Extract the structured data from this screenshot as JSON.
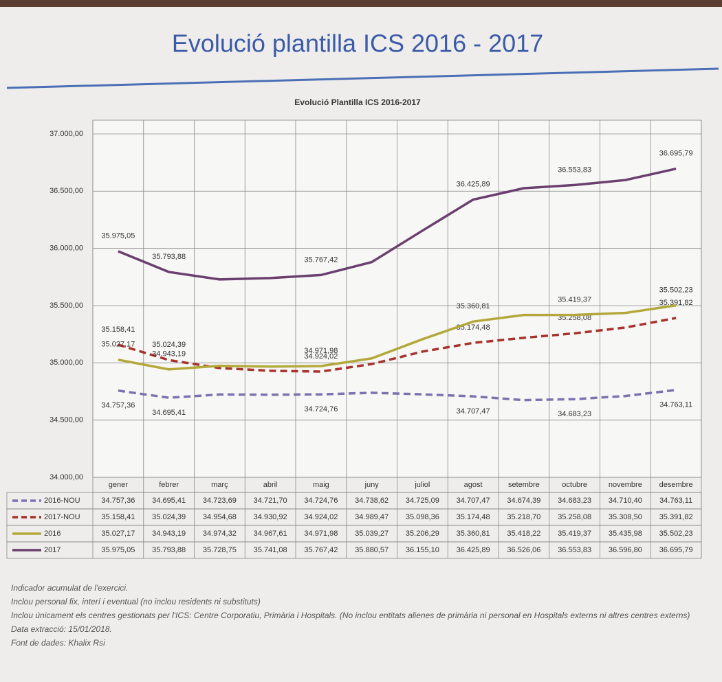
{
  "slide_title": "Evolució plantilla ICS 2016 - 2017",
  "notes": [
    "Indicador acumulat de l'exercici.",
    "Inclou personal fix, interí i eventual (no inclou residents ni substituts)",
    "Inclou únicament els centres gestionats per l'ICS: Centre Corporatiu, Primària i Hospitals. (No inclou entitats alienes de primària ni personal en Hospitals externs ni altres centres externs)",
    "Data extracció: 15/01/2018.",
    "Font de dades: Khalix Rsi"
  ],
  "chart_data": {
    "type": "line",
    "title": "Evolució Plantilla ICS 2016-2017",
    "categories": [
      "gener",
      "febrer",
      "març",
      "abril",
      "maig",
      "juny",
      "juliol",
      "agost",
      "setembre",
      "octubre",
      "novembre",
      "desembre"
    ],
    "ylim": [
      34000,
      37000
    ],
    "yticks": [
      {
        "value": 34000,
        "label": "34.000,00"
      },
      {
        "value": 34500,
        "label": "34.500,00"
      },
      {
        "value": 35000,
        "label": "35.000,00"
      },
      {
        "value": 35500,
        "label": "35.500,00"
      },
      {
        "value": 36000,
        "label": "36.000,00"
      },
      {
        "value": 36500,
        "label": "36.500,00"
      },
      {
        "value": 37000,
        "label": "37.000,00"
      }
    ],
    "grid": true,
    "series": [
      {
        "name": "2016-NOU",
        "color": "#7b72b0",
        "dashed": true,
        "values": [
          34757.36,
          34695.41,
          34723.69,
          34721.7,
          34724.76,
          34738.62,
          34725.09,
          34707.47,
          34674.39,
          34683.23,
          34710.4,
          34763.11
        ],
        "value_labels": [
          "34.757,36",
          "34.695,41",
          "34.723,69",
          "34.721,70",
          "34.724,76",
          "34.738,62",
          "34.725,09",
          "34.707,47",
          "34.674,39",
          "34.683,23",
          "34.710,40",
          "34.763,11"
        ]
      },
      {
        "name": "2017-NOU",
        "color": "#a8322c",
        "dashed": true,
        "values": [
          35158.41,
          35024.39,
          34954.68,
          34930.92,
          34924.02,
          34989.47,
          35098.36,
          35174.48,
          35218.7,
          35258.08,
          35308.5,
          35391.82
        ],
        "value_labels": [
          "35.158,41",
          "35.024,39",
          "34.954,68",
          "34.930,92",
          "34.924,02",
          "34.989,47",
          "35.098,36",
          "35.174,48",
          "35.218,70",
          "35.258,08",
          "35.308,50",
          "35.391,82"
        ]
      },
      {
        "name": "2016",
        "color": "#b3a83a",
        "dashed": false,
        "values": [
          35027.17,
          34943.19,
          34974.32,
          34967.61,
          34971.98,
          35039.27,
          35206.29,
          35360.81,
          35418.22,
          35419.37,
          35435.98,
          35502.23
        ],
        "value_labels": [
          "35.027,17",
          "34.943,19",
          "34.974,32",
          "34.967,61",
          "34.971,98",
          "35.039,27",
          "35.206,29",
          "35.360,81",
          "35.418,22",
          "35.419,37",
          "35.435,98",
          "35.502,23"
        ]
      },
      {
        "name": "2017",
        "color": "#6b3f6e",
        "dashed": false,
        "values": [
          35975.05,
          35793.88,
          35728.75,
          35741.08,
          35767.42,
          35880.57,
          36155.1,
          36425.89,
          36526.06,
          36553.83,
          36596.8,
          36695.79
        ],
        "value_labels": [
          "35.975,05",
          "35.793,88",
          "35.728,75",
          "35.741,08",
          "35.767,42",
          "35.880,57",
          "36.155,10",
          "36.425,89",
          "36.526,06",
          "36.553,83",
          "36.596,80",
          "36.695,79"
        ]
      }
    ]
  }
}
